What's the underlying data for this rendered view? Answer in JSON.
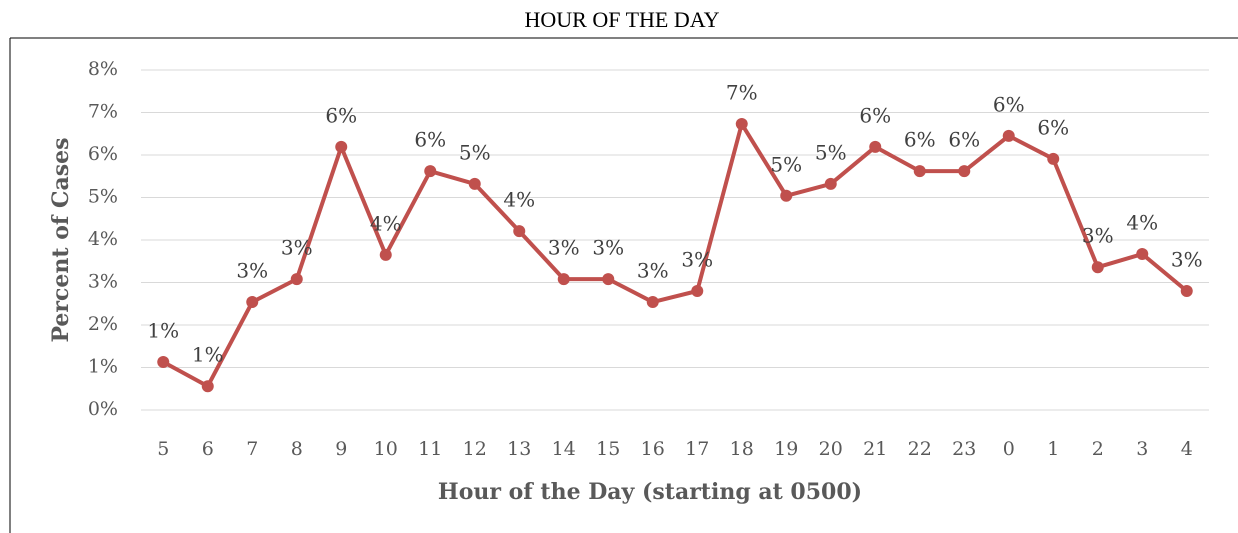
{
  "chart_data": {
    "type": "line",
    "title": "HOUR OF THE DAY",
    "x_label": "Hour of the Day (starting at 0500)",
    "y_label": "Percent of Cases",
    "categories": [
      "5",
      "6",
      "7",
      "8",
      "9",
      "10",
      "11",
      "12",
      "13",
      "14",
      "15",
      "16",
      "17",
      "18",
      "19",
      "20",
      "21",
      "22",
      "23",
      "0",
      "1",
      "2",
      "3",
      "4"
    ],
    "values": [
      1.13,
      0.56,
      2.54,
      3.08,
      6.19,
      3.65,
      5.62,
      5.32,
      4.21,
      3.08,
      3.08,
      2.54,
      2.8,
      6.73,
      5.04,
      5.32,
      6.19,
      5.62,
      5.62,
      6.45,
      5.91,
      3.36,
      3.67,
      2.8
    ],
    "value_labels": [
      "1%",
      "1%",
      "3%",
      "3%",
      "6%",
      "4%",
      "6%",
      "5%",
      "4%",
      "3%",
      "3%",
      "3%",
      "3%",
      "7%",
      "5%",
      "5%",
      "6%",
      "6%",
      "6%",
      "6%",
      "6%",
      "3%",
      "4%",
      "3%"
    ],
    "color": "#c0504d",
    "ylim": [
      0,
      8
    ],
    "yticks": [
      {
        "value": 0,
        "label": "0%"
      },
      {
        "value": 1,
        "label": "1%"
      },
      {
        "value": 2,
        "label": "2%"
      },
      {
        "value": 3,
        "label": "3%"
      },
      {
        "value": 4,
        "label": "4%"
      },
      {
        "value": 5,
        "label": "5%"
      },
      {
        "value": 6,
        "label": "6%"
      },
      {
        "value": 7,
        "label": "7%"
      },
      {
        "value": 8,
        "label": "8%"
      }
    ],
    "grid": true
  }
}
